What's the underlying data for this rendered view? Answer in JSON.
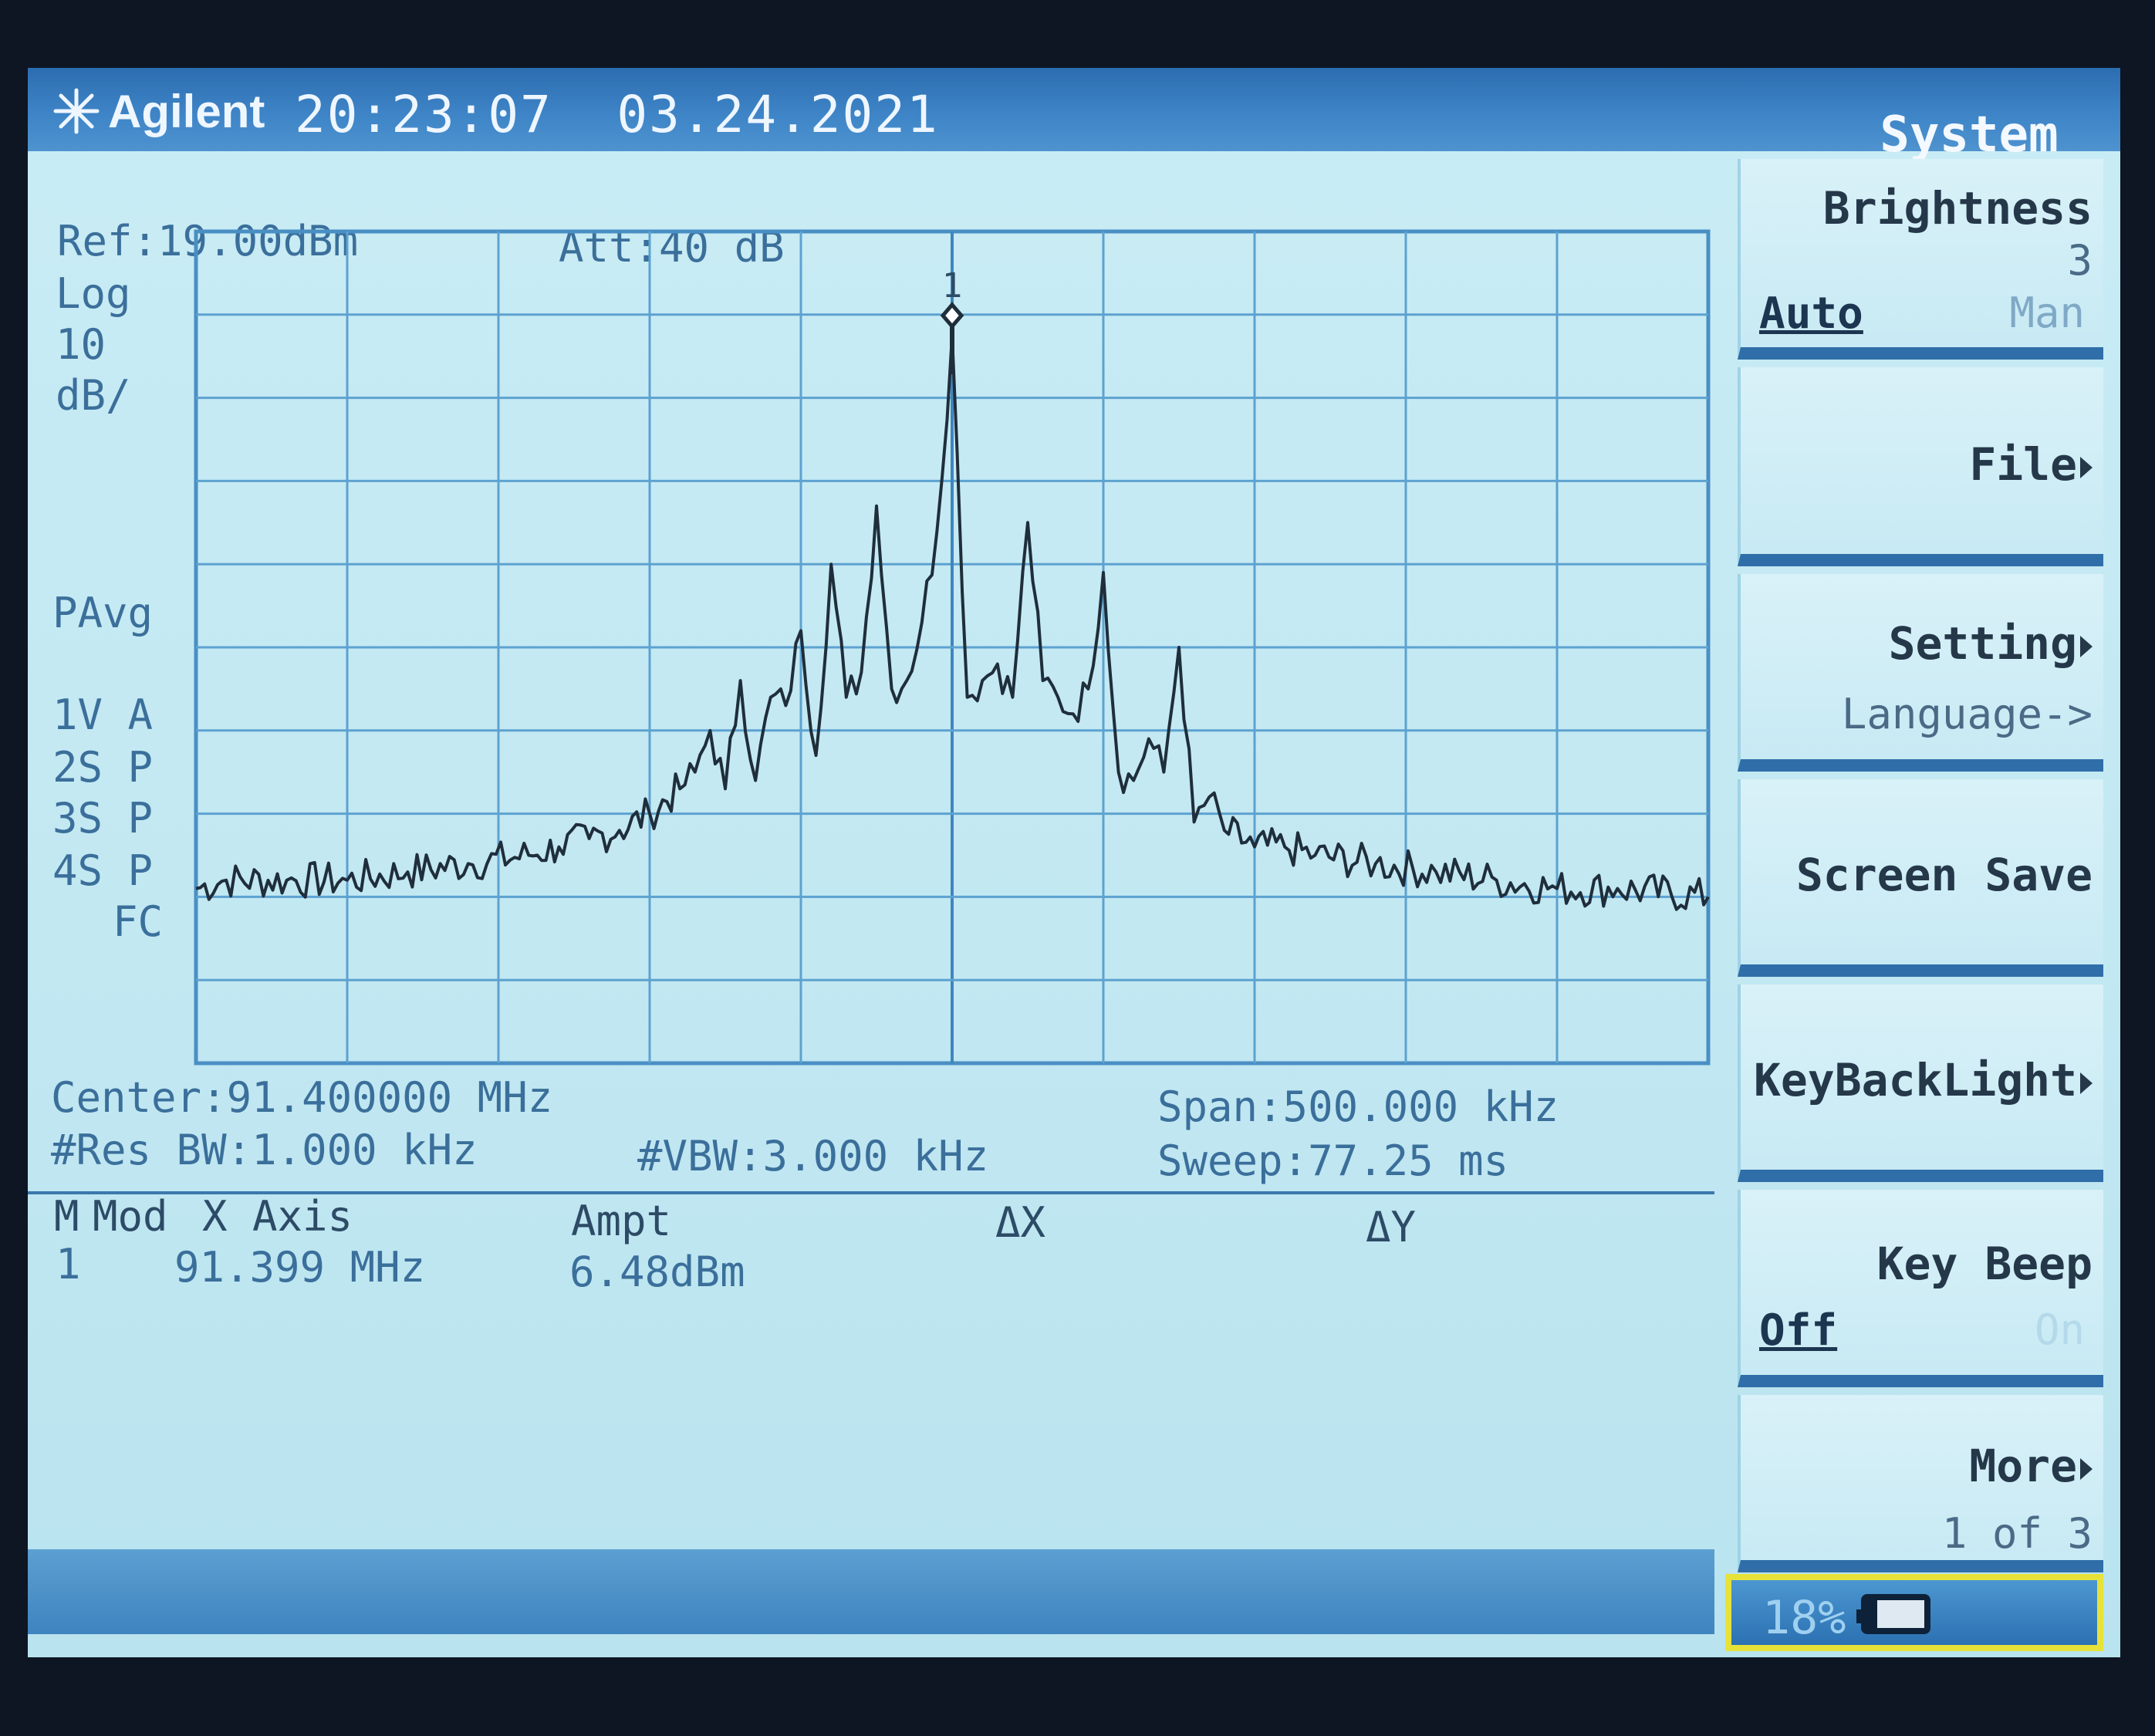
{
  "header": {
    "brand": "Agilent",
    "time": "20:23:07",
    "date": "03.24.2021",
    "menu_title": "System",
    "logo_icon": "agilent-spark-icon"
  },
  "display": {
    "ref": "Ref:19.00dBm",
    "att": "Att:40 dB",
    "scale_mode": "Log",
    "scale_value": "10",
    "scale_unit": "dB/",
    "avg_mode": "PAvg",
    "traces": [
      "1V A",
      "2S P",
      "3S P",
      "4S P"
    ],
    "fc": "FC",
    "center": "Center:91.400000 MHz",
    "res_bw": "#Res BW:1.000 kHz",
    "vbw": "#VBW:3.000 kHz",
    "span": "Span:500.000 kHz",
    "sweep": "Sweep:77.25 ms",
    "marker_label": "1"
  },
  "marker_table": {
    "headers": [
      "M",
      "Mod",
      "X Axis",
      "Ampt",
      "ΔX",
      "ΔY"
    ],
    "rows": [
      {
        "m": "1",
        "mod": "",
        "x_axis": "91.399 MHz",
        "ampt": "6.48dBm",
        "dx": "",
        "dy": ""
      }
    ]
  },
  "softkeys": {
    "brightness": {
      "label": "Brightness",
      "value": "3",
      "auto": "Auto",
      "man": "Man"
    },
    "file": {
      "label": "File"
    },
    "setting": {
      "label": "Setting",
      "sub": "Language->"
    },
    "screen_save": {
      "label": "Screen Save"
    },
    "keybacklight": {
      "label": "KeyBackLight"
    },
    "key_beep": {
      "label": "Key Beep",
      "off": "Off",
      "on": "On"
    },
    "more": {
      "label": "More",
      "page": "1 of 3"
    }
  },
  "battery": {
    "percent": "18%",
    "icon": "battery-icon",
    "level": 0.18
  },
  "chart_data": {
    "type": "line",
    "x_unit": "MHz",
    "y_unit": "dBm",
    "xlim": [
      91.15,
      91.65
    ],
    "ylim": [
      -81,
      19
    ],
    "x": [
      91.15,
      91.16,
      91.18,
      91.2,
      91.22,
      91.24,
      91.26,
      91.27,
      91.28,
      91.29,
      91.3,
      91.31,
      91.315,
      91.32,
      91.325,
      91.33,
      91.335,
      91.34,
      91.345,
      91.35,
      91.355,
      91.36,
      91.365,
      91.37,
      91.375,
      91.38,
      91.385,
      91.39,
      91.395,
      91.4,
      91.405,
      91.41,
      91.415,
      91.42,
      91.425,
      91.43,
      91.435,
      91.44,
      91.445,
      91.45,
      91.455,
      91.46,
      91.465,
      91.47,
      91.475,
      91.48,
      91.485,
      91.49,
      91.5,
      91.51,
      91.52,
      91.54,
      91.56,
      91.58,
      91.6,
      91.62,
      91.65
    ],
    "y": [
      -60,
      -59,
      -59,
      -59,
      -58,
      -57,
      -56,
      -55,
      -54,
      -53,
      -51,
      -48,
      -46,
      -41,
      -48,
      -35,
      -47,
      -37,
      -38,
      -29,
      -44,
      -21,
      -37,
      -34,
      -14,
      -36,
      -35,
      -28,
      -17,
      6.48,
      -37,
      -35,
      -33,
      -37,
      -16,
      -35,
      -37,
      -39,
      -36,
      -22,
      -46,
      -47,
      -42,
      -46,
      -31,
      -52,
      -49,
      -53,
      -55,
      -55,
      -56,
      -57,
      -58,
      -59,
      -60,
      -60,
      -61
    ]
  }
}
